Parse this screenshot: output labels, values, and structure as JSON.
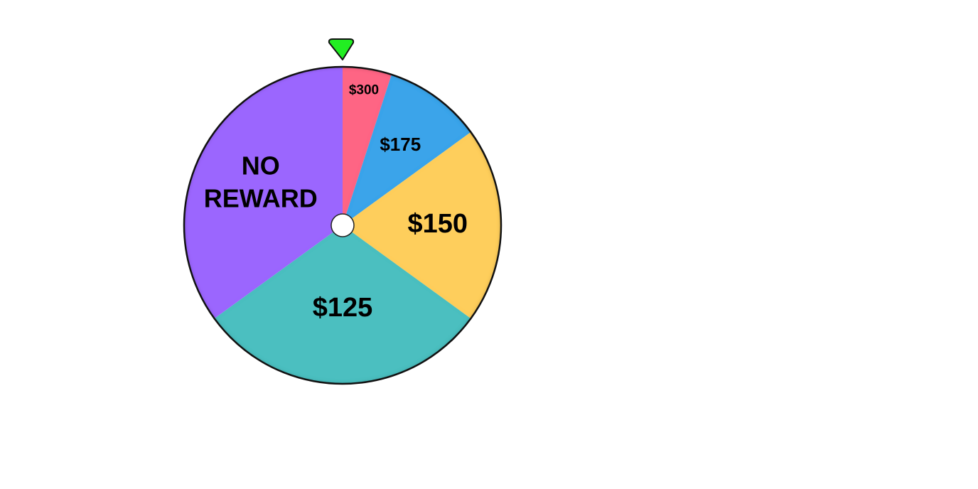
{
  "wheel": {
    "pointer_color": "#22ee22",
    "hub_color": "#ffffff",
    "rim_color": "#111111",
    "segments": [
      {
        "label": [
          "$300"
        ],
        "color": "#fe6584",
        "share": 0.05
      },
      {
        "label": [
          "$175"
        ],
        "color": "#3ba4ea",
        "share": 0.1
      },
      {
        "label": [
          "$150"
        ],
        "color": "#fece5c",
        "share": 0.2
      },
      {
        "label": [
          "$125"
        ],
        "color": "#4cbfc0",
        "share": 0.3
      },
      {
        "label": [
          "NO",
          "REWARD"
        ],
        "color": "#9b66fe",
        "share": 0.35
      }
    ]
  },
  "icons": {
    "pointer": "triangle-down-icon",
    "hub": "circle-hub-icon"
  }
}
